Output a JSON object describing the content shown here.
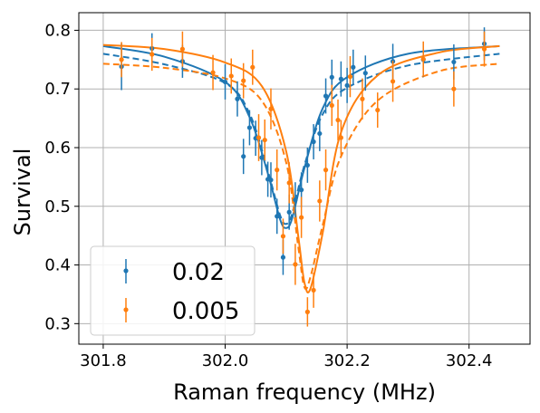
{
  "chart_data": {
    "type": "scatter",
    "title": "",
    "xlabel": "Raman frequency (MHz)",
    "ylabel": "Survival",
    "xlim": [
      301.76,
      302.5
    ],
    "ylim": [
      0.265,
      0.83
    ],
    "xticks": [
      301.8,
      302.0,
      302.2,
      302.4
    ],
    "xtick_labels": [
      "301.8",
      "302.0",
      "302.2",
      "302.4"
    ],
    "yticks": [
      0.3,
      0.4,
      0.5,
      0.6,
      0.7,
      0.8
    ],
    "ytick_labels": [
      "0.3",
      "0.4",
      "0.5",
      "0.6",
      "0.7",
      "0.8"
    ],
    "grid": true,
    "legend_position": "bottom-left",
    "series": [
      {
        "name": "0.02",
        "color": "#1f77b4",
        "points": [
          {
            "x": 301.83,
            "y": 0.738,
            "err": 0.04
          },
          {
            "x": 301.88,
            "y": 0.769,
            "err": 0.026
          },
          {
            "x": 301.93,
            "y": 0.747,
            "err": 0.028
          },
          {
            "x": 302.0,
            "y": 0.712,
            "err": 0.03
          },
          {
            "x": 302.02,
            "y": 0.683,
            "err": 0.03
          },
          {
            "x": 302.03,
            "y": 0.585,
            "err": 0.03
          },
          {
            "x": 302.04,
            "y": 0.634,
            "err": 0.03
          },
          {
            "x": 302.05,
            "y": 0.616,
            "err": 0.03
          },
          {
            "x": 302.06,
            "y": 0.583,
            "err": 0.03
          },
          {
            "x": 302.07,
            "y": 0.546,
            "err": 0.03
          },
          {
            "x": 302.075,
            "y": 0.545,
            "err": 0.03
          },
          {
            "x": 302.085,
            "y": 0.483,
            "err": 0.03
          },
          {
            "x": 302.095,
            "y": 0.413,
            "err": 0.03
          },
          {
            "x": 302.105,
            "y": 0.49,
            "err": 0.03
          },
          {
            "x": 302.115,
            "y": 0.511,
            "err": 0.03
          },
          {
            "x": 302.125,
            "y": 0.528,
            "err": 0.03
          },
          {
            "x": 302.135,
            "y": 0.57,
            "err": 0.03
          },
          {
            "x": 302.145,
            "y": 0.61,
            "err": 0.03
          },
          {
            "x": 302.155,
            "y": 0.624,
            "err": 0.03
          },
          {
            "x": 302.165,
            "y": 0.688,
            "err": 0.03
          },
          {
            "x": 302.175,
            "y": 0.72,
            "err": 0.03
          },
          {
            "x": 302.19,
            "y": 0.717,
            "err": 0.03
          },
          {
            "x": 302.2,
            "y": 0.706,
            "err": 0.03
          },
          {
            "x": 302.21,
            "y": 0.737,
            "err": 0.03
          },
          {
            "x": 302.23,
            "y": 0.727,
            "err": 0.03
          },
          {
            "x": 302.275,
            "y": 0.747,
            "err": 0.03
          },
          {
            "x": 302.325,
            "y": 0.75,
            "err": 0.03
          },
          {
            "x": 302.375,
            "y": 0.746,
            "err": 0.03
          },
          {
            "x": 302.425,
            "y": 0.777,
            "err": 0.028
          }
        ],
        "fit_solid": {
          "x": [
            301.8,
            301.9,
            302.0,
            302.04,
            302.07,
            302.09,
            302.1,
            302.11,
            302.13,
            302.16,
            302.2,
            302.3,
            302.45
          ],
          "y": [
            0.773,
            0.755,
            0.712,
            0.652,
            0.556,
            0.478,
            0.463,
            0.48,
            0.565,
            0.667,
            0.72,
            0.76,
            0.773
          ]
        },
        "fit_dashed": {
          "x": [
            301.8,
            301.9,
            302.0,
            302.04,
            302.07,
            302.09,
            302.1,
            302.11,
            302.13,
            302.16,
            302.2,
            302.3,
            302.45
          ],
          "y": [
            0.76,
            0.742,
            0.71,
            0.658,
            0.56,
            0.485,
            0.47,
            0.488,
            0.57,
            0.657,
            0.702,
            0.74,
            0.76
          ]
        }
      },
      {
        "name": "0.005",
        "color": "#ff7f0e",
        "points": [
          {
            "x": 301.83,
            "y": 0.75,
            "err": 0.03
          },
          {
            "x": 301.88,
            "y": 0.759,
            "err": 0.028
          },
          {
            "x": 301.93,
            "y": 0.768,
            "err": 0.03
          },
          {
            "x": 301.98,
            "y": 0.728,
            "err": 0.03
          },
          {
            "x": 302.01,
            "y": 0.722,
            "err": 0.03
          },
          {
            "x": 302.03,
            "y": 0.714,
            "err": 0.03
          },
          {
            "x": 302.045,
            "y": 0.737,
            "err": 0.03
          },
          {
            "x": 302.055,
            "y": 0.617,
            "err": 0.04
          },
          {
            "x": 302.065,
            "y": 0.613,
            "err": 0.035
          },
          {
            "x": 302.075,
            "y": 0.666,
            "err": 0.035
          },
          {
            "x": 302.085,
            "y": 0.562,
            "err": 0.035
          },
          {
            "x": 302.095,
            "y": 0.449,
            "err": 0.03
          },
          {
            "x": 302.105,
            "y": 0.54,
            "err": 0.035
          },
          {
            "x": 302.115,
            "y": 0.401,
            "err": 0.035
          },
          {
            "x": 302.125,
            "y": 0.481,
            "err": 0.035
          },
          {
            "x": 302.135,
            "y": 0.32,
            "err": 0.025
          },
          {
            "x": 302.145,
            "y": 0.357,
            "err": 0.03
          },
          {
            "x": 302.155,
            "y": 0.509,
            "err": 0.035
          },
          {
            "x": 302.165,
            "y": 0.562,
            "err": 0.035
          },
          {
            "x": 302.175,
            "y": 0.672,
            "err": 0.035
          },
          {
            "x": 302.185,
            "y": 0.647,
            "err": 0.035
          },
          {
            "x": 302.19,
            "y": 0.617,
            "err": 0.03
          },
          {
            "x": 302.205,
            "y": 0.721,
            "err": 0.035
          },
          {
            "x": 302.225,
            "y": 0.683,
            "err": 0.035
          },
          {
            "x": 302.25,
            "y": 0.664,
            "err": 0.03
          },
          {
            "x": 302.275,
            "y": 0.713,
            "err": 0.035
          },
          {
            "x": 302.325,
            "y": 0.751,
            "err": 0.03
          },
          {
            "x": 302.375,
            "y": 0.7,
            "err": 0.03
          },
          {
            "x": 302.425,
            "y": 0.768,
            "err": 0.03
          }
        ],
        "fit_solid": {
          "x": [
            301.8,
            301.9,
            302.0,
            302.06,
            302.1,
            302.12,
            302.13,
            302.14,
            302.16,
            302.19,
            302.25,
            302.35,
            302.45
          ],
          "y": [
            0.775,
            0.768,
            0.745,
            0.705,
            0.594,
            0.448,
            0.37,
            0.36,
            0.455,
            0.626,
            0.723,
            0.762,
            0.773
          ]
        },
        "fit_dashed": {
          "x": [
            301.8,
            301.9,
            302.0,
            302.06,
            302.1,
            302.12,
            302.13,
            302.14,
            302.16,
            302.19,
            302.25,
            302.35,
            302.45
          ],
          "y": [
            0.743,
            0.736,
            0.718,
            0.68,
            0.575,
            0.43,
            0.362,
            0.38,
            0.468,
            0.585,
            0.68,
            0.73,
            0.743
          ]
        }
      }
    ]
  }
}
